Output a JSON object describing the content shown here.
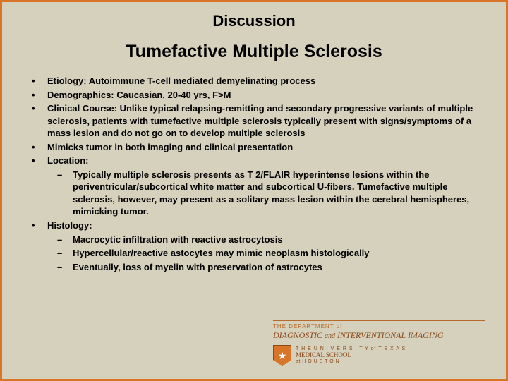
{
  "slide": {
    "title": "Discussion",
    "subtitle": "Tumefactive Multiple Sclerosis"
  },
  "bullets": [
    {
      "text": "Etiology:  Autoimmune T-cell mediated demyelinating process"
    },
    {
      "text": "Demographics: Caucasian, 20-40 yrs, F>M"
    },
    {
      "text": "Clinical Course: Unlike typical relapsing-remitting and secondary progressive variants of multiple sclerosis, patients with tumefactive multiple sclerosis typically present with signs/symptoms of a mass lesion and do not go on to develop multiple sclerosis"
    },
    {
      "text": "Mimicks tumor in both imaging and clinical presentation"
    },
    {
      "text": "Location:",
      "sub": [
        "Typically multiple sclerosis presents as T 2/FLAIR hyperintense lesions within the periventricular/subcortical white matter and subcortical U-fibers. Tumefactive multiple sclerosis, however, may present as a solitary mass lesion within the cerebral hemispheres, mimicking tumor."
      ]
    },
    {
      "text": "Histology:",
      "sub": [
        "Macrocytic infiltration with reactive astrocytosis",
        " Hypercellular/reactive astocytes may mimic neoplasm histologically",
        "Eventually, loss of myelin with preservation of astrocytes"
      ]
    }
  ],
  "footer": {
    "dept_small": "THE DEPARTMENT of",
    "dept_main_1": "DIAGNOSTIC",
    "dept_and": "and",
    "dept_main_2": "INTERVENTIONAL",
    "dept_main_3": "IMAGING",
    "uni_small_1": "T H E  U N I V E R S I T Y  of  T E X A S",
    "uni_line2": "MEDICAL SCHOOL",
    "uni_small_2": "at  H O U S T O N"
  },
  "style": {
    "background": "#d6d1bd",
    "border": "#d97528",
    "text": "#000000",
    "footer_accent": "#b86a2a",
    "footer_text": "#8a4a1a"
  }
}
